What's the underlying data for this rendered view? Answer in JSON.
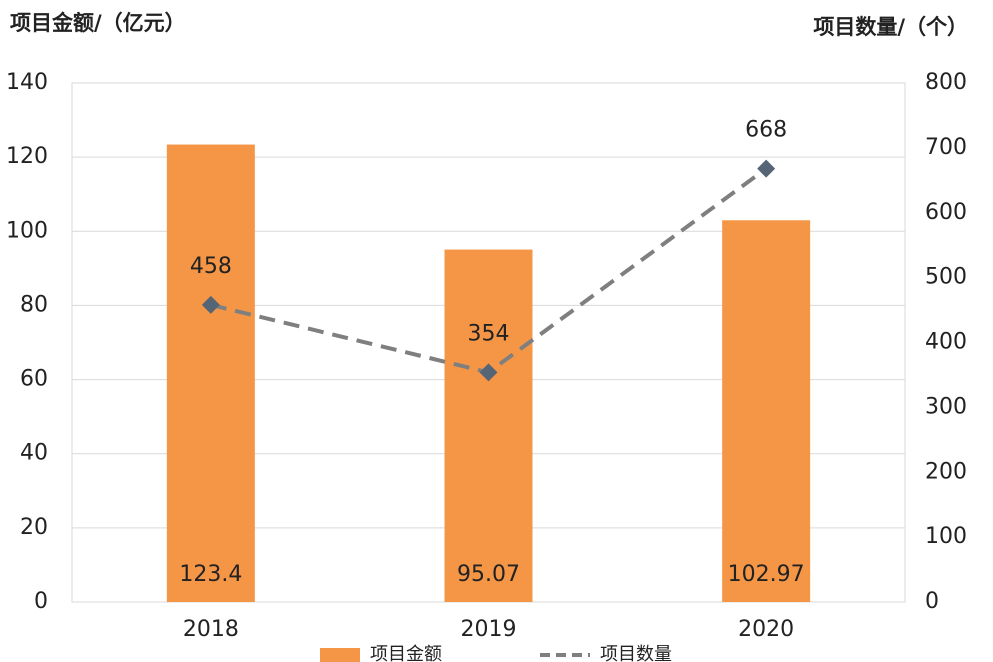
{
  "chart_data": {
    "type": "bar",
    "y_label": "项目金额/（亿元）",
    "y2_label": "项目数量/（个）",
    "categories": [
      "2018",
      "2019",
      "2020"
    ],
    "series": [
      {
        "name": "项目金额",
        "type": "bar",
        "color": "#f59647",
        "values": [
          123.4,
          95.07,
          102.97
        ],
        "value_labels": [
          "123.4",
          "95.07",
          "102.97"
        ]
      },
      {
        "name": "项目数量",
        "type": "line",
        "axis": "y2",
        "color": "#7f7f7f",
        "marker_color": "#566575",
        "values": [
          458,
          354,
          668
        ]
      }
    ],
    "ylim": [
      0,
      140
    ],
    "yticks": [
      0,
      20,
      40,
      60,
      80,
      100,
      120,
      140
    ],
    "y2lim": [
      0,
      800
    ],
    "y2ticks": [
      0,
      100,
      200,
      300,
      400,
      500,
      600,
      700,
      800
    ],
    "grid": true,
    "legend": "bottom"
  }
}
